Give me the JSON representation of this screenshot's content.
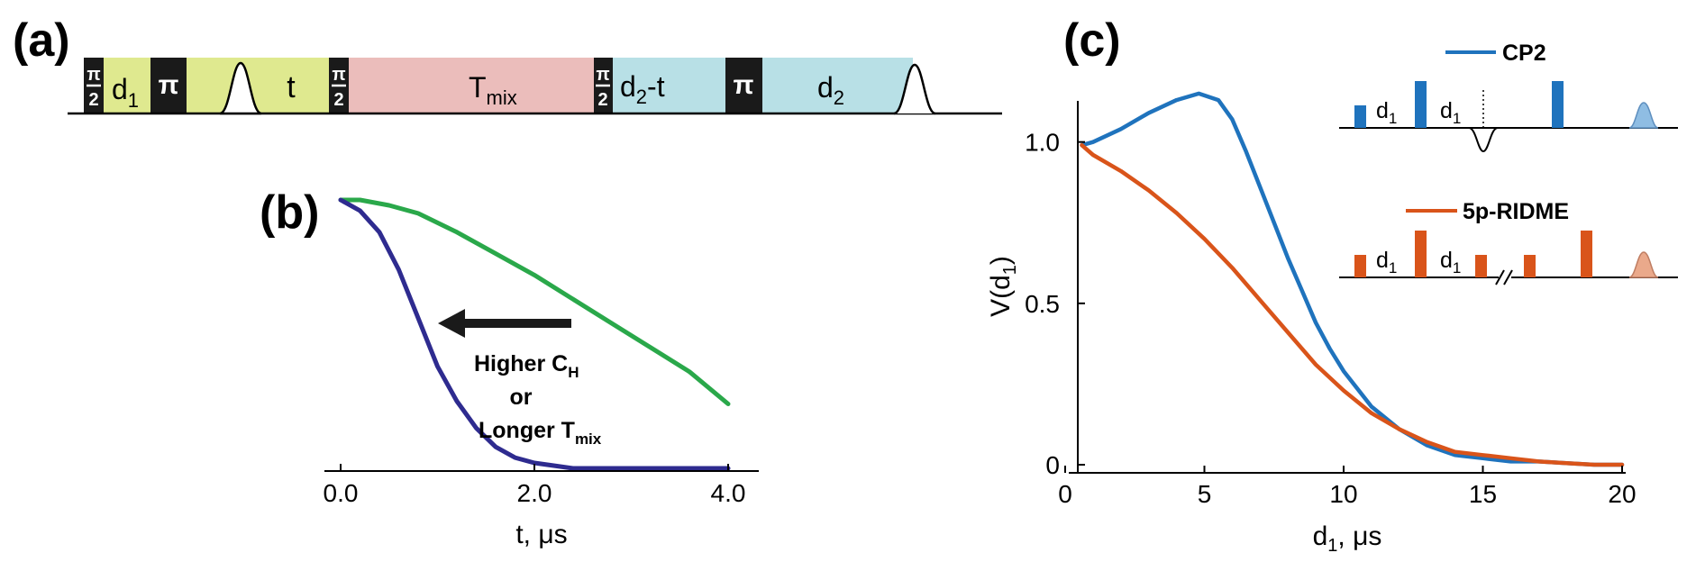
{
  "panel_labels": {
    "a": "(a)",
    "b": "(b)",
    "c": "(c)"
  },
  "sequence": {
    "pi_half": {
      "num": "π",
      "den": "2"
    },
    "pi": "π",
    "d1": {
      "base": "d",
      "sub": "1"
    },
    "t": "t",
    "tmix": {
      "base": "T",
      "sub": "mix"
    },
    "d2t": {
      "base": "d",
      "sub": "2",
      "suffix": "-t"
    },
    "d2": {
      "base": "d",
      "sub": "2"
    },
    "colors": {
      "d1_zone": "#dfe98f",
      "t_zone": "#dfe98f",
      "mix_zone": "#ebbdbb",
      "d2_zone": "#b8e0e6",
      "pulse": "#1a1a1a"
    }
  },
  "annotation": {
    "line1": {
      "base": "Higher C",
      "sub": "H"
    },
    "line2": "or",
    "line3": {
      "base": "Longer T",
      "sub": "mix"
    }
  },
  "inset": {
    "cp2": {
      "d1a": {
        "base": "d",
        "sub": "1"
      },
      "d1b": {
        "base": "d",
        "sub": "1"
      }
    },
    "ridme": {
      "d1a": {
        "base": "d",
        "sub": "1"
      },
      "d1b": {
        "base": "d",
        "sub": "1"
      }
    },
    "cp2_color": "#1f73bd",
    "ridme_color": "#d9541a"
  },
  "chart_data": [
    {
      "type": "line",
      "panel": "b",
      "xlabel": "t, μs",
      "ylabel": "",
      "xlim": [
        0,
        4
      ],
      "ylim": [
        0,
        1
      ],
      "x_ticks": [
        "0.0",
        "2.0",
        "4.0"
      ],
      "x_tick_values": [
        0,
        2,
        4
      ],
      "series": [
        {
          "color": "#2aa84a",
          "x": [
            0,
            0.2,
            0.5,
            0.8,
            1.2,
            1.6,
            2.0,
            2.4,
            2.8,
            3.2,
            3.6,
            4.0
          ],
          "y": [
            1.0,
            1.0,
            0.98,
            0.95,
            0.88,
            0.8,
            0.72,
            0.63,
            0.54,
            0.45,
            0.36,
            0.24
          ]
        },
        {
          "color": "#2e2b8f",
          "x": [
            0,
            0.2,
            0.4,
            0.6,
            0.8,
            1.0,
            1.2,
            1.4,
            1.6,
            1.8,
            2.0,
            2.2,
            2.4,
            2.6,
            3.0,
            4.0
          ],
          "y": [
            1.0,
            0.96,
            0.88,
            0.74,
            0.56,
            0.38,
            0.25,
            0.15,
            0.08,
            0.04,
            0.02,
            0.01,
            0.0,
            0.0,
            0.0,
            0.0
          ]
        }
      ]
    },
    {
      "type": "line",
      "panel": "c",
      "xlabel": "d₁, μs",
      "ylabel": "V(d₁)",
      "xlim": [
        0,
        20
      ],
      "ylim": [
        0,
        1.2
      ],
      "x_ticks": [
        "0",
        "5",
        "10",
        "15",
        "20"
      ],
      "x_tick_values": [
        0,
        5,
        10,
        15,
        20
      ],
      "y_ticks": [
        "0",
        "0.5",
        "1.0"
      ],
      "y_tick_values": [
        0,
        0.5,
        1.0
      ],
      "series": [
        {
          "name": "CP2",
          "color": "#1f73bd",
          "x": [
            0.6,
            1,
            2,
            3,
            4,
            4.8,
            5.5,
            6,
            6.5,
            7,
            7.5,
            8,
            8.5,
            9,
            9.5,
            10,
            11,
            12,
            13,
            14,
            15,
            16,
            17,
            18,
            19,
            20
          ],
          "y": [
            0.99,
            1.0,
            1.04,
            1.09,
            1.13,
            1.15,
            1.13,
            1.07,
            0.97,
            0.86,
            0.75,
            0.64,
            0.54,
            0.44,
            0.36,
            0.29,
            0.18,
            0.11,
            0.06,
            0.03,
            0.02,
            0.01,
            0.01,
            0.005,
            0.0,
            0.0
          ]
        },
        {
          "name": "5p-RIDME",
          "color": "#d9541a",
          "x": [
            0.6,
            1,
            2,
            3,
            4,
            5,
            6,
            7,
            8,
            9,
            10,
            11,
            12,
            13,
            14,
            15,
            16,
            17,
            18,
            19,
            20
          ],
          "y": [
            0.99,
            0.96,
            0.91,
            0.85,
            0.78,
            0.7,
            0.61,
            0.51,
            0.41,
            0.31,
            0.23,
            0.16,
            0.11,
            0.07,
            0.04,
            0.03,
            0.02,
            0.01,
            0.005,
            0.0,
            0.0
          ]
        }
      ]
    }
  ]
}
